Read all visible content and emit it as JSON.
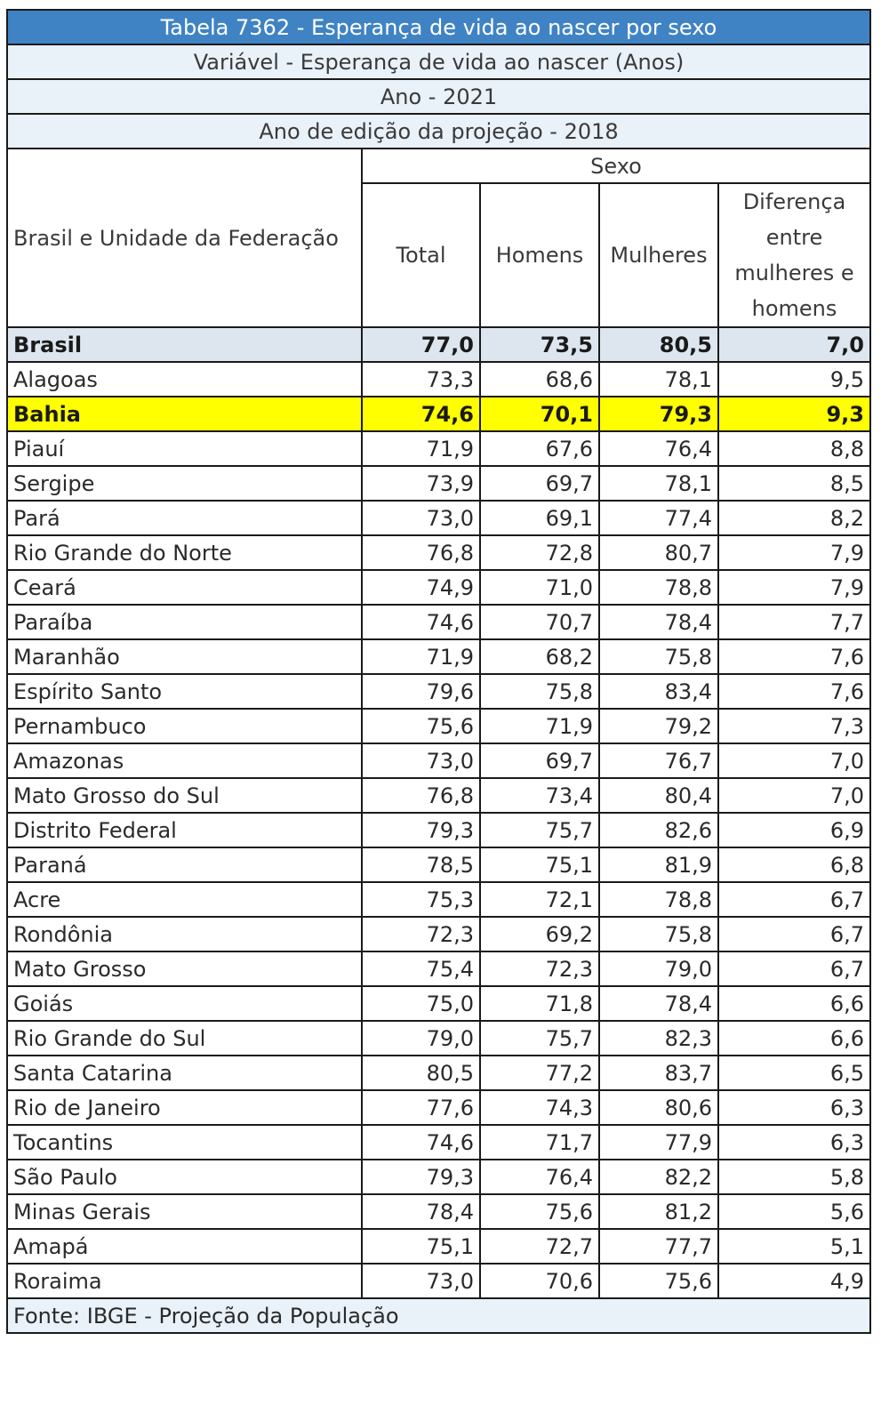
{
  "meta": {
    "title": "Tabela 7362 - Esperança de vida ao nascer por sexo",
    "variavel": "Variável - Esperança de vida ao nascer (Anos)",
    "ano": "Ano - 2021",
    "edicao": "Ano de edição da projeção - 2018"
  },
  "header": {
    "name_col": "Brasil e Unidade da Federação",
    "group": "Sexo",
    "total": "Total",
    "homens": "Homens",
    "mulheres": "Mulheres",
    "diferenca": "Diferença entre mulheres e homens"
  },
  "rows": [
    {
      "name": "Brasil",
      "total": "77,0",
      "homens": "73,5",
      "mulheres": "80,5",
      "dif": "7,0"
    },
    {
      "name": "Alagoas",
      "total": "73,3",
      "homens": "68,6",
      "mulheres": "78,1",
      "dif": "9,5"
    },
    {
      "name": "Bahia",
      "total": "74,6",
      "homens": "70,1",
      "mulheres": "79,3",
      "dif": "9,3"
    },
    {
      "name": "Piauí",
      "total": "71,9",
      "homens": "67,6",
      "mulheres": "76,4",
      "dif": "8,8"
    },
    {
      "name": "Sergipe",
      "total": "73,9",
      "homens": "69,7",
      "mulheres": "78,1",
      "dif": "8,5"
    },
    {
      "name": "Pará",
      "total": "73,0",
      "homens": "69,1",
      "mulheres": "77,4",
      "dif": "8,2"
    },
    {
      "name": "Rio Grande do Norte",
      "total": "76,8",
      "homens": "72,8",
      "mulheres": "80,7",
      "dif": "7,9"
    },
    {
      "name": "Ceará",
      "total": "74,9",
      "homens": "71,0",
      "mulheres": "78,8",
      "dif": "7,9"
    },
    {
      "name": "Paraíba",
      "total": "74,6",
      "homens": "70,7",
      "mulheres": "78,4",
      "dif": "7,7"
    },
    {
      "name": "Maranhão",
      "total": "71,9",
      "homens": "68,2",
      "mulheres": "75,8",
      "dif": "7,6"
    },
    {
      "name": "Espírito Santo",
      "total": "79,6",
      "homens": "75,8",
      "mulheres": "83,4",
      "dif": "7,6"
    },
    {
      "name": "Pernambuco",
      "total": "75,6",
      "homens": "71,9",
      "mulheres": "79,2",
      "dif": "7,3"
    },
    {
      "name": "Amazonas",
      "total": "73,0",
      "homens": "69,7",
      "mulheres": "76,7",
      "dif": "7,0"
    },
    {
      "name": "Mato Grosso do Sul",
      "total": "76,8",
      "homens": "73,4",
      "mulheres": "80,4",
      "dif": "7,0"
    },
    {
      "name": "Distrito Federal",
      "total": "79,3",
      "homens": "75,7",
      "mulheres": "82,6",
      "dif": "6,9"
    },
    {
      "name": "Paraná",
      "total": "78,5",
      "homens": "75,1",
      "mulheres": "81,9",
      "dif": "6,8"
    },
    {
      "name": "Acre",
      "total": "75,3",
      "homens": "72,1",
      "mulheres": "78,8",
      "dif": "6,7"
    },
    {
      "name": "Rondônia",
      "total": "72,3",
      "homens": "69,2",
      "mulheres": "75,8",
      "dif": "6,7"
    },
    {
      "name": "Mato Grosso",
      "total": "75,4",
      "homens": "72,3",
      "mulheres": "79,0",
      "dif": "6,7"
    },
    {
      "name": "Goiás",
      "total": "75,0",
      "homens": "71,8",
      "mulheres": "78,4",
      "dif": "6,6"
    },
    {
      "name": "Rio Grande do Sul",
      "total": "79,0",
      "homens": "75,7",
      "mulheres": "82,3",
      "dif": "6,6"
    },
    {
      "name": "Santa Catarina",
      "total": "80,5",
      "homens": "77,2",
      "mulheres": "83,7",
      "dif": "6,5"
    },
    {
      "name": "Rio de Janeiro",
      "total": "77,6",
      "homens": "74,3",
      "mulheres": "80,6",
      "dif": "6,3"
    },
    {
      "name": "Tocantins",
      "total": "74,6",
      "homens": "71,7",
      "mulheres": "77,9",
      "dif": "6,3"
    },
    {
      "name": "São Paulo",
      "total": "79,3",
      "homens": "76,4",
      "mulheres": "82,2",
      "dif": "5,8"
    },
    {
      "name": "Minas Gerais",
      "total": "78,4",
      "homens": "75,6",
      "mulheres": "81,2",
      "dif": "5,6"
    },
    {
      "name": "Amapá",
      "total": "75,1",
      "homens": "72,7",
      "mulheres": "77,7",
      "dif": "5,1"
    },
    {
      "name": "Roraima",
      "total": "73,0",
      "homens": "70,6",
      "mulheres": "75,6",
      "dif": "4,9"
    }
  ],
  "footer": {
    "source": "Fonte: IBGE - Projeção da População"
  },
  "colors": {
    "title_bg": "#3f83c4",
    "meta_bg": "#e9f1f9",
    "brasil_bg": "#dde6ef",
    "highlight_bg": "#ffff00"
  }
}
